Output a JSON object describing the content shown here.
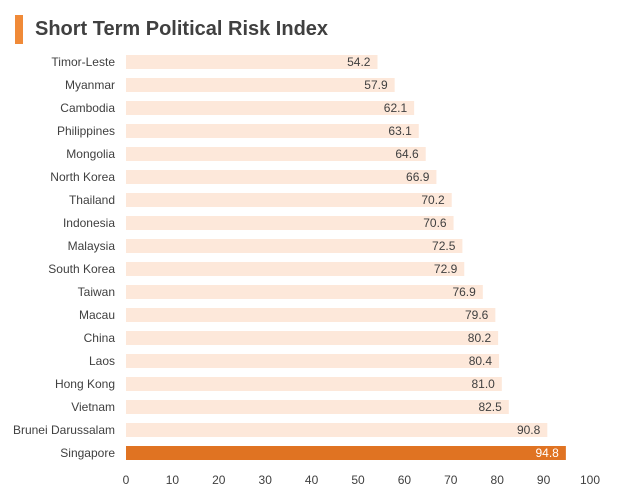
{
  "title": "Short Term Political Risk Index",
  "colors": {
    "accent": "#f08a38",
    "bar": "#fde8da",
    "highlight": "#e07322",
    "label": "#404040",
    "highlight_label": "#ffffff"
  },
  "chart_data": {
    "type": "bar",
    "orientation": "horizontal",
    "title": "Short Term Political Risk Index",
    "xlabel": "",
    "ylabel": "",
    "xlim": [
      0,
      100
    ],
    "x_ticks": [
      "0",
      "10",
      "20",
      "30",
      "40",
      "50",
      "60",
      "70",
      "80",
      "90",
      "100"
    ],
    "grid": false,
    "legend": "none",
    "highlighted_category": "Singapore",
    "categories": [
      "Timor-Leste",
      "Myanmar",
      "Cambodia",
      "Philippines",
      "Mongolia",
      "North Korea",
      "Thailand",
      "Indonesia",
      "Malaysia",
      "South Korea",
      "Taiwan",
      "Macau",
      "China",
      "Laos",
      "Hong Kong",
      "Vietnam",
      "Brunei Darussalam",
      "Singapore"
    ],
    "values": [
      54.2,
      57.9,
      62.1,
      63.1,
      64.6,
      66.9,
      70.2,
      70.6,
      72.5,
      72.9,
      76.9,
      79.6,
      80.2,
      80.4,
      81.0,
      82.5,
      90.8,
      94.8
    ],
    "value_labels": [
      "54.2",
      "57.9",
      "62.1",
      "63.1",
      "64.6",
      "66.9",
      "70.2",
      "70.6",
      "72.5",
      "72.9",
      "76.9",
      "79.6",
      "80.2",
      "80.4",
      "81.0",
      "82.5",
      "90.8",
      "94.8"
    ]
  }
}
